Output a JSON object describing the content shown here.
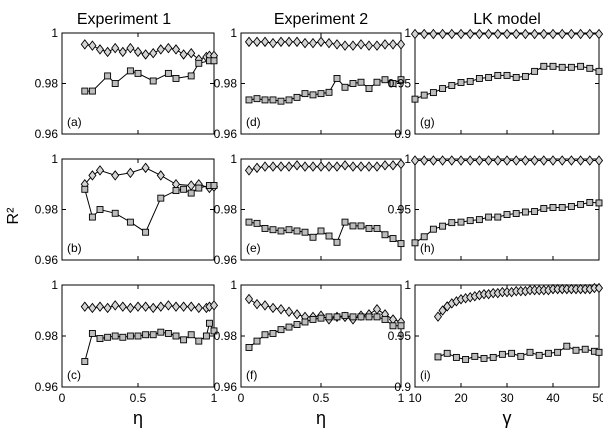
{
  "figure": {
    "column_titles": [
      "Experiment 1",
      "Experiment 2",
      "LK model"
    ],
    "shared_ylabel": "R²",
    "colors": {
      "diamond_fill": "#d4d4d4",
      "square_fill": "#bdbdbd",
      "line": "#000000"
    }
  },
  "chart_data": [
    {
      "panel": "(a)",
      "type": "line",
      "xlim": [
        0,
        1
      ],
      "ylim": [
        0.96,
        1
      ],
      "xticks": [],
      "yticks": [
        0.96,
        0.98,
        1
      ],
      "yticklabels": [
        "0.96",
        "0.98",
        "1"
      ],
      "series": [
        {
          "marker": "diamond",
          "x": [
            0.15,
            0.2,
            0.25,
            0.3,
            0.35,
            0.4,
            0.45,
            0.5,
            0.55,
            0.6,
            0.65,
            0.7,
            0.75,
            0.8,
            0.85,
            0.9,
            0.95,
            0.97,
            1.0
          ],
          "y": [
            0.9955,
            0.995,
            0.9935,
            0.9925,
            0.994,
            0.9925,
            0.994,
            0.9925,
            0.9915,
            0.992,
            0.9935,
            0.994,
            0.9935,
            0.9915,
            0.992,
            0.9895,
            0.9905,
            0.991,
            0.991
          ]
        },
        {
          "marker": "square",
          "x": [
            0.15,
            0.2,
            0.3,
            0.35,
            0.45,
            0.5,
            0.6,
            0.7,
            0.75,
            0.85,
            0.9,
            0.97,
            1.0
          ],
          "y": [
            0.977,
            0.977,
            0.983,
            0.98,
            0.985,
            0.984,
            0.981,
            0.984,
            0.982,
            0.983,
            0.988,
            0.989,
            0.989
          ]
        }
      ]
    },
    {
      "panel": "(d)",
      "type": "line",
      "xlim": [
        0,
        1
      ],
      "ylim": [
        0.96,
        1
      ],
      "xticks": [],
      "yticks": [
        0.96,
        0.98,
        1
      ],
      "yticklabels": [
        "0.96",
        "0.98",
        "1"
      ],
      "series": [
        {
          "marker": "diamond",
          "x": [
            0.05,
            0.1,
            0.15,
            0.2,
            0.25,
            0.3,
            0.35,
            0.4,
            0.45,
            0.5,
            0.55,
            0.6,
            0.65,
            0.7,
            0.75,
            0.8,
            0.85,
            0.9,
            0.95,
            1.0
          ],
          "y": [
            0.9965,
            0.9965,
            0.9965,
            0.996,
            0.9965,
            0.9965,
            0.9965,
            0.996,
            0.996,
            0.9965,
            0.996,
            0.9955,
            0.995,
            0.995,
            0.9955,
            0.995,
            0.995,
            0.9955,
            0.9955,
            0.9955
          ]
        },
        {
          "marker": "square",
          "x": [
            0.05,
            0.1,
            0.15,
            0.2,
            0.25,
            0.3,
            0.35,
            0.4,
            0.45,
            0.5,
            0.55,
            0.6,
            0.65,
            0.7,
            0.75,
            0.8,
            0.85,
            0.9,
            0.95,
            1.0
          ],
          "y": [
            0.9735,
            0.974,
            0.9735,
            0.9735,
            0.973,
            0.9735,
            0.9745,
            0.976,
            0.9755,
            0.976,
            0.9765,
            0.982,
            0.9785,
            0.98,
            0.9805,
            0.978,
            0.9805,
            0.9815,
            0.98,
            0.9815
          ]
        }
      ]
    },
    {
      "panel": "(g)",
      "type": "line",
      "xlim": [
        10,
        50
      ],
      "ylim": [
        0.9,
        1
      ],
      "xticks": [],
      "yticks": [
        0.9,
        0.95,
        1
      ],
      "yticklabels": [
        "0.9",
        "0.95",
        "1"
      ],
      "series": [
        {
          "marker": "diamond",
          "x": [
            10,
            12,
            14,
            16,
            18,
            20,
            22,
            24,
            26,
            28,
            30,
            32,
            34,
            36,
            38,
            40,
            42,
            44,
            46,
            48,
            50
          ],
          "y": [
            0.999,
            0.999,
            0.999,
            0.999,
            0.999,
            0.999,
            0.999,
            0.999,
            0.999,
            0.999,
            0.999,
            0.999,
            0.999,
            0.999,
            0.999,
            0.999,
            0.999,
            0.999,
            0.999,
            0.999,
            0.999
          ]
        },
        {
          "marker": "square",
          "x": [
            10,
            12,
            14,
            16,
            18,
            20,
            22,
            24,
            26,
            28,
            30,
            32,
            34,
            36,
            38,
            40,
            42,
            44,
            46,
            48,
            50
          ],
          "y": [
            0.9345,
            0.9385,
            0.941,
            0.945,
            0.948,
            0.951,
            0.952,
            0.955,
            0.956,
            0.958,
            0.958,
            0.956,
            0.957,
            0.962,
            0.967,
            0.967,
            0.966,
            0.966,
            0.967,
            0.965,
            0.962
          ]
        }
      ]
    },
    {
      "panel": "(b)",
      "type": "line",
      "xlim": [
        0,
        1
      ],
      "ylim": [
        0.96,
        1
      ],
      "xticks": [],
      "yticks": [
        0.96,
        0.98,
        1
      ],
      "yticklabels": [
        "0.96",
        "0.98",
        "1"
      ],
      "series": [
        {
          "marker": "diamond",
          "x": [
            0.15,
            0.2,
            0.25,
            0.35,
            0.45,
            0.55,
            0.65,
            0.75,
            0.85,
            0.9,
            0.97,
            1.0
          ],
          "y": [
            0.99,
            0.9935,
            0.9955,
            0.9935,
            0.9945,
            0.9965,
            0.9935,
            0.99,
            0.9895,
            0.99,
            0.9885,
            0.989
          ]
        },
        {
          "marker": "square",
          "x": [
            0.15,
            0.2,
            0.25,
            0.35,
            0.45,
            0.55,
            0.65,
            0.75,
            0.8,
            0.85,
            0.9,
            0.97,
            1.0
          ],
          "y": [
            0.988,
            0.977,
            0.98,
            0.9785,
            0.975,
            0.971,
            0.9845,
            0.9875,
            0.988,
            0.9865,
            0.9885,
            0.9895,
            0.9895
          ]
        }
      ]
    },
    {
      "panel": "(e)",
      "type": "line",
      "xlim": [
        0,
        1
      ],
      "ylim": [
        0.96,
        1
      ],
      "xticks": [],
      "yticks": [
        0.96,
        0.98,
        1
      ],
      "yticklabels": [
        "0.96",
        "0.98",
        "1"
      ],
      "series": [
        {
          "marker": "diamond",
          "x": [
            0.05,
            0.1,
            0.15,
            0.2,
            0.25,
            0.3,
            0.35,
            0.4,
            0.45,
            0.5,
            0.55,
            0.6,
            0.65,
            0.7,
            0.75,
            0.8,
            0.85,
            0.9,
            0.95,
            1.0
          ],
          "y": [
            0.9955,
            0.9965,
            0.997,
            0.997,
            0.997,
            0.997,
            0.9975,
            0.997,
            0.997,
            0.997,
            0.997,
            0.997,
            0.9975,
            0.997,
            0.997,
            0.997,
            0.997,
            0.9975,
            0.9975,
            0.998
          ]
        },
        {
          "marker": "square",
          "x": [
            0.05,
            0.1,
            0.15,
            0.2,
            0.25,
            0.3,
            0.35,
            0.4,
            0.45,
            0.5,
            0.55,
            0.6,
            0.65,
            0.7,
            0.75,
            0.8,
            0.85,
            0.9,
            0.95,
            1.0
          ],
          "y": [
            0.975,
            0.9745,
            0.9725,
            0.972,
            0.9715,
            0.972,
            0.9715,
            0.971,
            0.969,
            0.9715,
            0.9695,
            0.967,
            0.975,
            0.9735,
            0.9735,
            0.9725,
            0.9725,
            0.97,
            0.9685,
            0.9665
          ]
        }
      ]
    },
    {
      "panel": "(h)",
      "type": "line",
      "xlim": [
        10,
        50
      ],
      "ylim": [
        0.9,
        1
      ],
      "xticks": [],
      "yticks": [
        0.95,
        1
      ],
      "yticklabels": [
        "0.95",
        "1"
      ],
      "series": [
        {
          "marker": "diamond",
          "x": [
            10,
            12,
            14,
            16,
            18,
            20,
            22,
            24,
            26,
            28,
            30,
            32,
            34,
            36,
            38,
            40,
            42,
            44,
            46,
            48,
            50
          ],
          "y": [
            0.9985,
            0.9985,
            0.9985,
            0.9985,
            0.9985,
            0.9985,
            0.9985,
            0.9985,
            0.9985,
            0.9985,
            0.9985,
            0.9985,
            0.9985,
            0.9985,
            0.9985,
            0.9985,
            0.9985,
            0.9985,
            0.9985,
            0.9985,
            0.9985
          ]
        },
        {
          "marker": "square",
          "x": [
            10,
            12,
            14,
            16,
            18,
            20,
            22,
            24,
            26,
            28,
            30,
            32,
            34,
            36,
            38,
            40,
            42,
            44,
            46,
            48,
            50
          ],
          "y": [
            0.917,
            0.923,
            0.9305,
            0.9335,
            0.937,
            0.9375,
            0.939,
            0.94,
            0.9425,
            0.9425,
            0.945,
            0.946,
            0.9475,
            0.948,
            0.951,
            0.952,
            0.952,
            0.953,
            0.955,
            0.957,
            0.9565
          ]
        }
      ]
    },
    {
      "panel": "(c)",
      "type": "line",
      "xlim": [
        0,
        1
      ],
      "ylim": [
        0.96,
        1
      ],
      "xticks": [
        0,
        0.5,
        1
      ],
      "xticklabels": [
        "0",
        "0.5",
        "1"
      ],
      "xlabel": "η",
      "yticks": [
        0.96,
        0.98,
        1
      ],
      "yticklabels": [
        "0.96",
        "0.98",
        "1"
      ],
      "series": [
        {
          "marker": "diamond",
          "x": [
            0.15,
            0.2,
            0.25,
            0.3,
            0.35,
            0.4,
            0.45,
            0.5,
            0.55,
            0.6,
            0.65,
            0.7,
            0.75,
            0.8,
            0.85,
            0.9,
            0.95,
            0.97,
            1.0
          ],
          "y": [
            0.9915,
            0.991,
            0.9915,
            0.991,
            0.992,
            0.9915,
            0.991,
            0.9915,
            0.9915,
            0.991,
            0.9915,
            0.992,
            0.9915,
            0.9915,
            0.9915,
            0.991,
            0.991,
            0.9915,
            0.992
          ]
        },
        {
          "marker": "square",
          "x": [
            0.15,
            0.2,
            0.25,
            0.3,
            0.35,
            0.4,
            0.45,
            0.5,
            0.55,
            0.6,
            0.65,
            0.7,
            0.75,
            0.8,
            0.85,
            0.9,
            0.95,
            0.97,
            1.0
          ],
          "y": [
            0.97,
            0.981,
            0.979,
            0.9795,
            0.98,
            0.9795,
            0.98,
            0.98,
            0.9805,
            0.9805,
            0.9815,
            0.981,
            0.98,
            0.9785,
            0.9805,
            0.978,
            0.98,
            0.985,
            0.982
          ]
        }
      ]
    },
    {
      "panel": "(f)",
      "type": "line",
      "xlim": [
        0,
        1
      ],
      "ylim": [
        0.96,
        1
      ],
      "xticks": [
        0,
        0.5,
        1
      ],
      "xticklabels": [
        "0",
        "0.5",
        "1"
      ],
      "xlabel": "η",
      "yticks": [
        0.96,
        0.98,
        1
      ],
      "yticklabels": [
        "0.96",
        "0.98",
        "1"
      ],
      "series": [
        {
          "marker": "diamond",
          "x": [
            0.05,
            0.1,
            0.15,
            0.2,
            0.25,
            0.3,
            0.35,
            0.4,
            0.45,
            0.5,
            0.55,
            0.6,
            0.65,
            0.7,
            0.75,
            0.8,
            0.85,
            0.9,
            0.95,
            1.0
          ],
          "y": [
            0.9945,
            0.9925,
            0.992,
            0.991,
            0.9905,
            0.9895,
            0.9885,
            0.9875,
            0.9875,
            0.988,
            0.9865,
            0.9875,
            0.9875,
            0.9865,
            0.988,
            0.9885,
            0.9905,
            0.9885,
            0.9865,
            0.9855
          ]
        },
        {
          "marker": "square",
          "x": [
            0.05,
            0.1,
            0.15,
            0.2,
            0.25,
            0.3,
            0.35,
            0.4,
            0.45,
            0.5,
            0.55,
            0.6,
            0.65,
            0.7,
            0.75,
            0.8,
            0.85,
            0.9,
            0.95,
            1.0
          ],
          "y": [
            0.9755,
            0.978,
            0.9805,
            0.981,
            0.9825,
            0.9835,
            0.9845,
            0.9855,
            0.9865,
            0.987,
            0.9875,
            0.9875,
            0.988,
            0.9875,
            0.9875,
            0.9875,
            0.9875,
            0.9865,
            0.984,
            0.984
          ]
        }
      ]
    },
    {
      "panel": "(i)",
      "type": "line",
      "xlim": [
        10,
        50
      ],
      "ylim": [
        0.9,
        1
      ],
      "xticks": [
        10,
        20,
        30,
        40,
        50
      ],
      "xticklabels": [
        "10",
        "20",
        "30",
        "40",
        "50"
      ],
      "xlabel": "γ",
      "yticks": [
        0.9,
        0.95,
        1
      ],
      "yticklabels": [
        "0.9",
        "0.95",
        "1"
      ],
      "series": [
        {
          "marker": "diamond",
          "x": [
            15,
            16,
            17,
            18,
            19,
            20,
            21,
            22,
            23,
            24,
            25,
            26,
            27,
            28,
            29,
            30,
            31,
            32,
            33,
            34,
            35,
            36,
            37,
            38,
            39,
            40,
            41,
            42,
            43,
            44,
            45,
            46,
            47,
            48,
            49,
            50
          ],
          "y": [
            0.969,
            0.975,
            0.979,
            0.982,
            0.984,
            0.986,
            0.987,
            0.988,
            0.989,
            0.99,
            0.991,
            0.991,
            0.992,
            0.992,
            0.993,
            0.993,
            0.993,
            0.994,
            0.994,
            0.994,
            0.995,
            0.995,
            0.995,
            0.995,
            0.995,
            0.996,
            0.996,
            0.996,
            0.996,
            0.996,
            0.996,
            0.996,
            0.996,
            0.996,
            0.997,
            0.997
          ]
        },
        {
          "marker": "square",
          "x": [
            15,
            17,
            19,
            21,
            23,
            25,
            27,
            29,
            31,
            33,
            35,
            37,
            39,
            41,
            43,
            45,
            47,
            49,
            50
          ],
          "y": [
            0.9295,
            0.933,
            0.929,
            0.927,
            0.93,
            0.928,
            0.929,
            0.932,
            0.933,
            0.93,
            0.934,
            0.931,
            0.933,
            0.934,
            0.94,
            0.936,
            0.937,
            0.935,
            0.934
          ]
        }
      ]
    }
  ]
}
